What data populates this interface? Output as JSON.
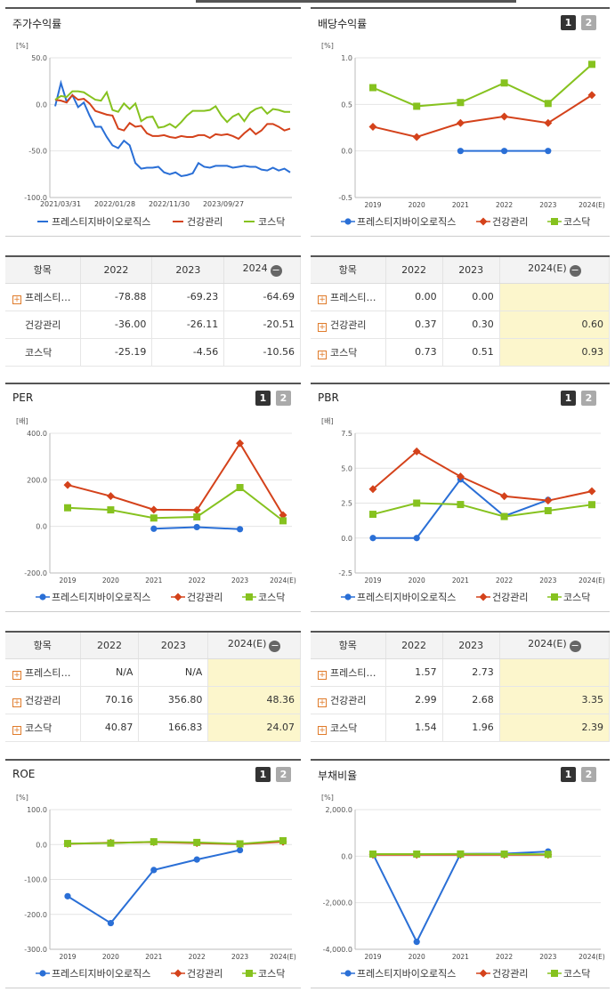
{
  "series_names": [
    "프레스티지바이오로직스",
    "건강관리",
    "코스닥"
  ],
  "colors": {
    "s1": "#2a6fd6",
    "s2": "#d4421b",
    "s3": "#86c21f"
  },
  "pager": {
    "p1": "1",
    "p2": "2"
  },
  "panels": {
    "stock": {
      "title": "주가수익률",
      "unit": "[%]"
    },
    "dividend": {
      "title": "배당수익률",
      "unit": "[%]"
    },
    "per": {
      "title": "PER",
      "unit": "[배]"
    },
    "pbr": {
      "title": "PBR",
      "unit": "[배]"
    },
    "roe": {
      "title": "ROE",
      "unit": "[%]"
    },
    "debt": {
      "title": "부채비율",
      "unit": "[%]"
    }
  },
  "tables": {
    "stock": {
      "header": [
        "항목",
        "2022",
        "2023",
        "2024"
      ],
      "rows": [
        {
          "name": "프레스티…",
          "vals": [
            "-78.88",
            "-69.23",
            "-64.69"
          ]
        },
        {
          "name": "건강관리",
          "vals": [
            "-36.00",
            "-26.11",
            "-20.51"
          ]
        },
        {
          "name": "코스닥",
          "vals": [
            "-25.19",
            "-4.56",
            "-10.56"
          ]
        }
      ]
    },
    "dividend": {
      "header": [
        "항목",
        "2022",
        "2023",
        "2024(E)"
      ],
      "rows": [
        {
          "name": "프레스티…",
          "vals": [
            "0.00",
            "0.00",
            ""
          ]
        },
        {
          "name": "건강관리",
          "vals": [
            "0.37",
            "0.30",
            "0.60"
          ]
        },
        {
          "name": "코스닥",
          "vals": [
            "0.73",
            "0.51",
            "0.93"
          ]
        }
      ]
    },
    "per": {
      "header": [
        "항목",
        "2022",
        "2023",
        "2024(E)"
      ],
      "rows": [
        {
          "name": "프레스티…",
          "vals": [
            "N/A",
            "N/A",
            ""
          ]
        },
        {
          "name": "건강관리",
          "vals": [
            "70.16",
            "356.80",
            "48.36"
          ]
        },
        {
          "name": "코스닥",
          "vals": [
            "40.87",
            "166.83",
            "24.07"
          ]
        }
      ]
    },
    "pbr": {
      "header": [
        "항목",
        "2022",
        "2023",
        "2024(E)"
      ],
      "rows": [
        {
          "name": "프레스티…",
          "vals": [
            "1.57",
            "2.73",
            ""
          ]
        },
        {
          "name": "건강관리",
          "vals": [
            "2.99",
            "2.68",
            "3.35"
          ]
        },
        {
          "name": "코스닥",
          "vals": [
            "1.54",
            "1.96",
            "2.39"
          ]
        }
      ]
    }
  },
  "chart_data": [
    {
      "id": "stock",
      "type": "line",
      "title": "주가수익률",
      "ylabel": "[%]",
      "ylim": [
        -100,
        50
      ],
      "yticks": [
        "50.0",
        "0.0",
        "-50.0",
        "-100.0"
      ],
      "xticklabels": [
        "2021/03/31",
        "2022/01/28",
        "2022/11/30",
        "2023/09/27"
      ],
      "series": [
        {
          "name": "프레스티지바이오로직스",
          "values": [
            -2,
            23,
            3,
            10,
            -3,
            2,
            -12,
            -24,
            -24,
            -35,
            -44,
            -47,
            -39,
            -44,
            -63,
            -69,
            -68,
            -68,
            -67,
            -73,
            -75,
            -73,
            -77,
            -76,
            -74,
            -63,
            -67,
            -68,
            -66,
            -66,
            -66,
            -68,
            -67,
            -66,
            -67,
            -67,
            -70,
            -71,
            -68,
            -71,
            -69,
            -73
          ]
        },
        {
          "name": "건강관리",
          "values": [
            5,
            4,
            2,
            10,
            5,
            6,
            1,
            -7,
            -9,
            -11,
            -12,
            -26,
            -28,
            -20,
            -24,
            -23,
            -31,
            -34,
            -34,
            -33,
            -35,
            -36,
            -34,
            -35,
            -35,
            -33,
            -33,
            -36,
            -32,
            -33,
            -32,
            -34,
            -37,
            -31,
            -26,
            -32,
            -28,
            -21,
            -21,
            -24,
            -28,
            -26
          ]
        },
        {
          "name": "코스닥",
          "values": [
            5,
            9,
            8,
            14,
            14,
            13,
            9,
            5,
            4,
            13,
            -6,
            -8,
            1,
            -5,
            1,
            -18,
            -14,
            -13,
            -25,
            -24,
            -21,
            -25,
            -19,
            -12,
            -7,
            -7,
            -7,
            -6,
            -2,
            -12,
            -19,
            -13,
            -10,
            -18,
            -9,
            -5,
            -3,
            -10,
            -5,
            -6,
            -8,
            -8
          ]
        }
      ]
    },
    {
      "id": "dividend",
      "type": "line",
      "title": "배당수익률",
      "ylabel": "[%]",
      "ylim": [
        -0.5,
        1.0
      ],
      "yticks": [
        "1.0",
        "0.5",
        "0.0",
        "-0.5"
      ],
      "categories": [
        "2019",
        "2020",
        "2021",
        "2022",
        "2023",
        "2024(E)"
      ],
      "series": [
        {
          "name": "프레스티지바이오로직스",
          "values": [
            null,
            null,
            0.0,
            0.0,
            0.0,
            null
          ]
        },
        {
          "name": "건강관리",
          "values": [
            0.26,
            0.15,
            0.3,
            0.37,
            0.3,
            0.6
          ]
        },
        {
          "name": "코스닥",
          "values": [
            0.68,
            0.48,
            0.52,
            0.73,
            0.51,
            0.93
          ]
        }
      ]
    },
    {
      "id": "per",
      "type": "line",
      "title": "PER",
      "ylabel": "[배]",
      "ylim": [
        -200,
        400
      ],
      "yticks": [
        "400.0",
        "200.0",
        "0.0",
        "-200.0"
      ],
      "categories": [
        "2019",
        "2020",
        "2021",
        "2022",
        "2023",
        "2024(E)"
      ],
      "series": [
        {
          "name": "프레스티지바이오로직스",
          "values": [
            null,
            null,
            -10,
            -3,
            -12,
            null
          ]
        },
        {
          "name": "건강관리",
          "values": [
            178,
            130,
            72,
            70.16,
            356.8,
            48.36
          ]
        },
        {
          "name": "코스닥",
          "values": [
            80,
            71,
            36,
            40.87,
            166.83,
            24.07
          ]
        }
      ]
    },
    {
      "id": "pbr",
      "type": "line",
      "title": "PBR",
      "ylabel": "[배]",
      "ylim": [
        -2.5,
        7.5
      ],
      "yticks": [
        "7.5",
        "5.0",
        "2.5",
        "0.0",
        "-2.5"
      ],
      "categories": [
        "2019",
        "2020",
        "2021",
        "2022",
        "2023",
        "2024(E)"
      ],
      "series": [
        {
          "name": "프레스티지바이오로직스",
          "values": [
            0.0,
            0.0,
            4.2,
            1.57,
            2.73,
            null
          ]
        },
        {
          "name": "건강관리",
          "values": [
            3.5,
            6.2,
            4.4,
            2.99,
            2.68,
            3.35
          ]
        },
        {
          "name": "코스닥",
          "values": [
            1.7,
            2.5,
            2.4,
            1.54,
            1.96,
            2.39
          ]
        }
      ]
    },
    {
      "id": "roe",
      "type": "line",
      "title": "ROE",
      "ylabel": "[%]",
      "ylim": [
        -300,
        100
      ],
      "yticks": [
        "100.0",
        "0.0",
        "-100.0",
        "-200.0",
        "-300.0"
      ],
      "categories": [
        "2019",
        "2020",
        "2021",
        "2022",
        "2023",
        "2024(E)"
      ],
      "series": [
        {
          "name": "프레스티지바이오로직스",
          "values": [
            -148,
            -225,
            -73,
            -43,
            -16,
            null
          ]
        },
        {
          "name": "건강관리",
          "values": [
            2,
            5,
            7,
            4,
            1,
            8
          ]
        },
        {
          "name": "코스닥",
          "values": [
            3,
            4,
            8,
            6,
            2,
            11
          ]
        }
      ]
    },
    {
      "id": "debt",
      "type": "line",
      "title": "부채비율",
      "ylabel": "[%]",
      "ylim": [
        -4000,
        2000
      ],
      "yticks": [
        "2,000.0",
        "0.0",
        "-2,000.0",
        "-4,000.0"
      ],
      "categories": [
        "2019",
        "2020",
        "2021",
        "2022",
        "2023",
        "2024(E)"
      ],
      "series": [
        {
          "name": "프레스티지바이오로직스",
          "values": [
            100,
            -3680,
            100,
            110,
            200,
            null
          ]
        },
        {
          "name": "건강관리",
          "values": [
            60,
            60,
            60,
            60,
            60,
            null
          ]
        },
        {
          "name": "코스닥",
          "values": [
            90,
            90,
            95,
            90,
            80,
            null
          ]
        }
      ]
    }
  ]
}
